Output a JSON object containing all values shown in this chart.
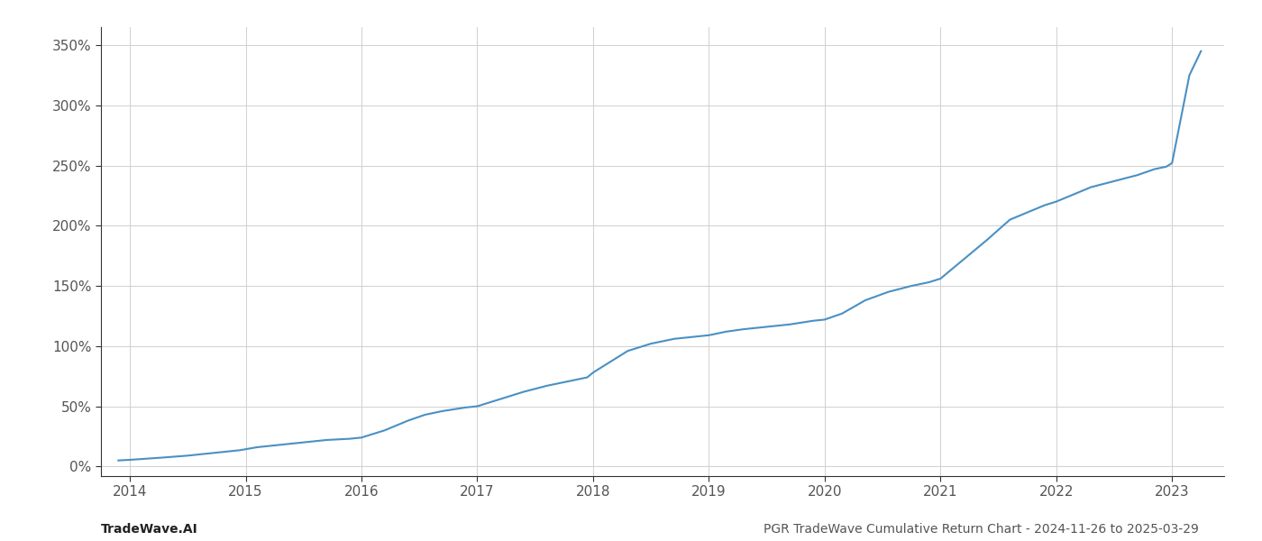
{
  "title": "",
  "footer_left": "TradeWave.AI",
  "footer_right": "PGR TradeWave Cumulative Return Chart - 2024-11-26 to 2025-03-29",
  "line_color": "#4a90c4",
  "line_width": 1.5,
  "background_color": "#ffffff",
  "grid_color": "#d0d0d0",
  "xlim": [
    2013.75,
    2023.45
  ],
  "ylim": [
    -8,
    365
  ],
  "yticks": [
    0,
    50,
    100,
    150,
    200,
    250,
    300,
    350
  ],
  "xticks": [
    2014,
    2015,
    2016,
    2017,
    2018,
    2019,
    2020,
    2021,
    2022,
    2023
  ],
  "x": [
    2013.9,
    2014.0,
    2014.15,
    2014.3,
    2014.5,
    2014.7,
    2014.85,
    2014.95,
    2015.1,
    2015.3,
    2015.5,
    2015.7,
    2015.9,
    2016.0,
    2016.2,
    2016.4,
    2016.55,
    2016.7,
    2016.9,
    2017.0,
    2017.2,
    2017.4,
    2017.6,
    2017.8,
    2017.95,
    2018.0,
    2018.15,
    2018.3,
    2018.5,
    2018.7,
    2018.9,
    2019.0,
    2019.15,
    2019.3,
    2019.5,
    2019.7,
    2019.9,
    2020.0,
    2020.15,
    2020.35,
    2020.55,
    2020.75,
    2020.9,
    2021.0,
    2021.2,
    2021.4,
    2021.6,
    2021.8,
    2021.9,
    2022.0,
    2022.15,
    2022.3,
    2022.5,
    2022.7,
    2022.85,
    2022.95,
    2023.0,
    2023.15,
    2023.25
  ],
  "y": [
    5,
    5.5,
    6.5,
    7.5,
    9,
    11,
    12.5,
    13.5,
    16,
    18,
    20,
    22,
    23,
    24,
    30,
    38,
    43,
    46,
    49,
    50,
    56,
    62,
    67,
    71,
    74,
    78,
    87,
    96,
    102,
    106,
    108,
    109,
    112,
    114,
    116,
    118,
    121,
    122,
    127,
    138,
    145,
    150,
    153,
    156,
    172,
    188,
    205,
    213,
    217,
    220,
    226,
    232,
    237,
    242,
    247,
    249,
    252,
    325,
    345
  ],
  "footer_fontsize": 10,
  "tick_fontsize": 11,
  "axis_color": "#555555",
  "spine_color": "#333333"
}
